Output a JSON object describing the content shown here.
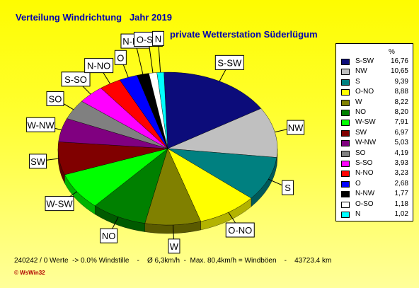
{
  "header": {
    "title": "Verteilung Windrichtung   Jahr 2019",
    "subtitle": "private Wetterstation Süderlügum"
  },
  "legend": {
    "percent_header": "%"
  },
  "footer": {
    "stats": "240242 / 0 Werte  -> 0.0% Windstille    -    Ø 6,3km/h  -  Max. 80,4km/h = Windböen    -    43723.4 km",
    "logo": "© WsWin32"
  },
  "chart_data": {
    "type": "pie",
    "title": "Verteilung Windrichtung   Jahr 2019",
    "subtitle": "private Wetterstation Süderlügum",
    "unit": "%",
    "legend_position": "right",
    "slices": [
      {
        "label": "S-SW",
        "value": 16.76,
        "display": "16,76",
        "color": "#0c0c7a"
      },
      {
        "label": "NW",
        "value": 10.65,
        "display": "10,65",
        "color": "#c0c0c0"
      },
      {
        "label": "S",
        "value": 9.39,
        "display": "9,39",
        "color": "#008080"
      },
      {
        "label": "O-NO",
        "value": 8.88,
        "display": "8,88",
        "color": "#ffff00"
      },
      {
        "label": "W",
        "value": 8.22,
        "display": "8,22",
        "color": "#808000"
      },
      {
        "label": "NO",
        "value": 8.2,
        "display": "8,20",
        "color": "#008000"
      },
      {
        "label": "W-SW",
        "value": 7.91,
        "display": "7,91",
        "color": "#00ff00"
      },
      {
        "label": "SW",
        "value": 6.97,
        "display": "6,97",
        "color": "#800000"
      },
      {
        "label": "W-NW",
        "value": 5.03,
        "display": "5,03",
        "color": "#800080"
      },
      {
        "label": "SO",
        "value": 4.19,
        "display": "4,19",
        "color": "#808080"
      },
      {
        "label": "S-SO",
        "value": 3.93,
        "display": "3,93",
        "color": "#ff00ff"
      },
      {
        "label": "N-NO",
        "value": 3.23,
        "display": "3,23",
        "color": "#ff0000"
      },
      {
        "label": "O",
        "value": 2.68,
        "display": "2,68",
        "color": "#0000ff"
      },
      {
        "label": "N-NW",
        "value": 1.77,
        "display": "1,77",
        "color": "#000000"
      },
      {
        "label": "O-SO",
        "value": 1.18,
        "display": "1,18",
        "color": "#ffffff"
      },
      {
        "label": "N",
        "value": 1.02,
        "display": "1,02",
        "color": "#00ffff"
      }
    ]
  }
}
